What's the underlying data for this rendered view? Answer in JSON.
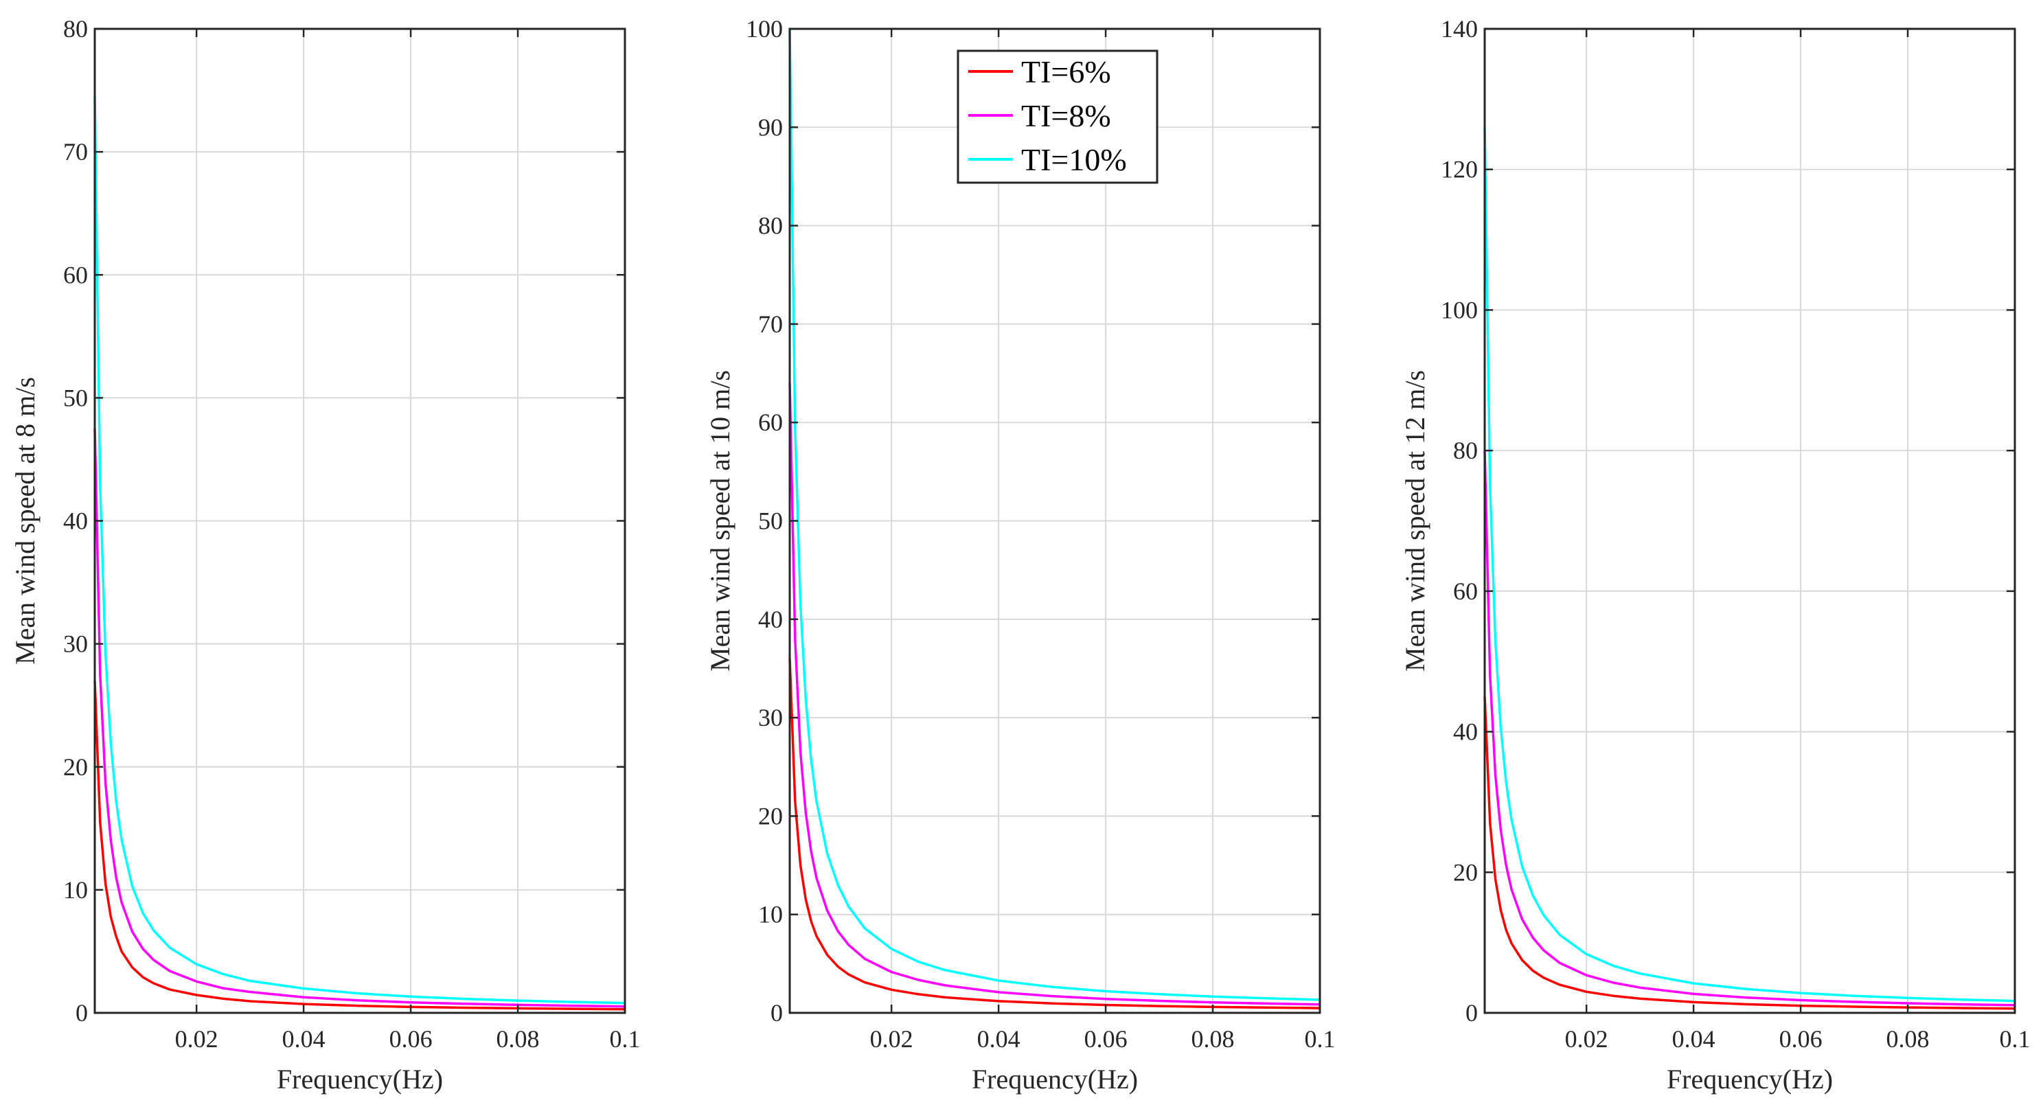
{
  "legend": [
    {
      "label": "TI=6%",
      "color": "#ff0000"
    },
    {
      "label": "TI=8%",
      "color": "#ff00ff"
    },
    {
      "label": "TI=10%",
      "color": "#00ffff"
    }
  ],
  "chart_data": [
    {
      "type": "line",
      "xlabel": "Frequency(Hz)",
      "ylabel": "Mean wind speed at 8 m/s",
      "xlim": [
        0.001,
        0.1
      ],
      "ylim": [
        0,
        80
      ],
      "xticks": [
        0.02,
        0.04,
        0.06,
        0.08,
        0.1
      ],
      "xtick_labels": [
        "0.02",
        "0.04",
        "0.06",
        "0.08",
        "0.1"
      ],
      "yticks": [
        0,
        10,
        20,
        30,
        40,
        50,
        60,
        70,
        80
      ],
      "ytick_labels": [
        "0",
        "10",
        "20",
        "30",
        "40",
        "50",
        "60",
        "70",
        "80"
      ],
      "grid": true,
      "x": [
        0.001,
        0.002,
        0.003,
        0.004,
        0.005,
        0.006,
        0.008,
        0.01,
        0.012,
        0.015,
        0.02,
        0.025,
        0.03,
        0.04,
        0.05,
        0.06,
        0.07,
        0.08,
        0.09,
        0.1
      ],
      "series": [
        {
          "name": "TI=6%",
          "color": "#ff0000",
          "values": [
            27.0,
            15.5,
            10.5,
            7.8,
            6.2,
            5.0,
            3.7,
            2.9,
            2.4,
            1.9,
            1.45,
            1.15,
            0.95,
            0.72,
            0.58,
            0.48,
            0.42,
            0.37,
            0.33,
            0.29
          ]
        },
        {
          "name": "TI=8%",
          "color": "#ff00ff",
          "values": [
            47.5,
            27.5,
            18.7,
            14.0,
            11.0,
            9.0,
            6.6,
            5.2,
            4.3,
            3.4,
            2.55,
            2.0,
            1.7,
            1.27,
            1.02,
            0.85,
            0.74,
            0.65,
            0.58,
            0.52
          ]
        },
        {
          "name": "TI=10%",
          "color": "#00ffff",
          "values": [
            74.5,
            43.0,
            29.2,
            21.9,
            17.2,
            14.1,
            10.3,
            8.1,
            6.7,
            5.3,
            3.95,
            3.15,
            2.6,
            1.98,
            1.59,
            1.33,
            1.14,
            1.0,
            0.89,
            0.8
          ]
        }
      ]
    },
    {
      "type": "line",
      "xlabel": "Frequency(Hz)",
      "ylabel": "Mean wind speed at 10 m/s",
      "xlim": [
        0.001,
        0.1
      ],
      "ylim": [
        0,
        100
      ],
      "xticks": [
        0.02,
        0.04,
        0.06,
        0.08,
        0.1
      ],
      "xtick_labels": [
        "0.02",
        "0.04",
        "0.06",
        "0.08",
        "0.1"
      ],
      "yticks": [
        0,
        10,
        20,
        30,
        40,
        50,
        60,
        70,
        80,
        90,
        100
      ],
      "ytick_labels": [
        "0",
        "10",
        "20",
        "30",
        "40",
        "50",
        "60",
        "70",
        "80",
        "90",
        "100"
      ],
      "grid": true,
      "legend_position": "top-right",
      "x": [
        0.001,
        0.002,
        0.003,
        0.004,
        0.005,
        0.006,
        0.008,
        0.01,
        0.012,
        0.015,
        0.02,
        0.025,
        0.03,
        0.04,
        0.05,
        0.06,
        0.07,
        0.08,
        0.09,
        0.1
      ],
      "series": [
        {
          "name": "TI=6%",
          "color": "#ff0000",
          "values": [
            36.0,
            21.5,
            15.0,
            11.5,
            9.3,
            7.8,
            5.9,
            4.7,
            3.9,
            3.1,
            2.35,
            1.9,
            1.58,
            1.19,
            0.96,
            0.8,
            0.69,
            0.6,
            0.54,
            0.48
          ]
        },
        {
          "name": "TI=8%",
          "color": "#ff00ff",
          "values": [
            64.0,
            38.0,
            26.5,
            20.3,
            16.4,
            13.7,
            10.4,
            8.3,
            6.9,
            5.5,
            4.15,
            3.35,
            2.8,
            2.1,
            1.7,
            1.42,
            1.22,
            1.07,
            0.95,
            0.85
          ]
        },
        {
          "name": "TI=10%",
          "color": "#00ffff",
          "values": [
            100,
            59.5,
            41.5,
            31.8,
            25.7,
            21.5,
            16.2,
            13.0,
            10.8,
            8.6,
            6.5,
            5.2,
            4.35,
            3.28,
            2.64,
            2.2,
            1.9,
            1.66,
            1.48,
            1.33
          ]
        }
      ]
    },
    {
      "type": "line",
      "xlabel": "Frequency(Hz)",
      "ylabel": "Mean wind speed at 12 m/s",
      "xlim": [
        0.001,
        0.1
      ],
      "ylim": [
        0,
        140
      ],
      "xticks": [
        0.02,
        0.04,
        0.06,
        0.08,
        0.1
      ],
      "xtick_labels": [
        "0.02",
        "0.04",
        "0.06",
        "0.08",
        "0.1"
      ],
      "yticks": [
        0,
        20,
        40,
        60,
        80,
        100,
        120,
        140
      ],
      "ytick_labels": [
        "0",
        "20",
        "40",
        "60",
        "80",
        "100",
        "120",
        "140"
      ],
      "grid": true,
      "x": [
        0.001,
        0.002,
        0.003,
        0.004,
        0.005,
        0.006,
        0.008,
        0.01,
        0.012,
        0.015,
        0.02,
        0.025,
        0.03,
        0.04,
        0.05,
        0.06,
        0.07,
        0.08,
        0.09,
        0.1
      ],
      "series": [
        {
          "name": "TI=6%",
          "color": "#ff0000",
          "values": [
            45.0,
            27.0,
            19.0,
            14.6,
            11.8,
            9.9,
            7.5,
            6.0,
            5.0,
            4.0,
            3.0,
            2.42,
            2.02,
            1.52,
            1.22,
            1.02,
            0.88,
            0.77,
            0.68,
            0.61
          ]
        },
        {
          "name": "TI=8%",
          "color": "#ff00ff",
          "values": [
            80.0,
            48.0,
            33.8,
            26.0,
            21.0,
            17.6,
            13.3,
            10.7,
            8.9,
            7.1,
            5.35,
            4.3,
            3.6,
            2.7,
            2.17,
            1.81,
            1.56,
            1.37,
            1.21,
            1.09
          ]
        },
        {
          "name": "TI=10%",
          "color": "#00ffff",
          "values": [
            126,
            75.0,
            52.8,
            40.6,
            32.8,
            27.5,
            20.8,
            16.7,
            13.9,
            11.1,
            8.35,
            6.7,
            5.6,
            4.2,
            3.38,
            2.82,
            2.42,
            2.12,
            1.89,
            1.7
          ]
        }
      ]
    }
  ]
}
